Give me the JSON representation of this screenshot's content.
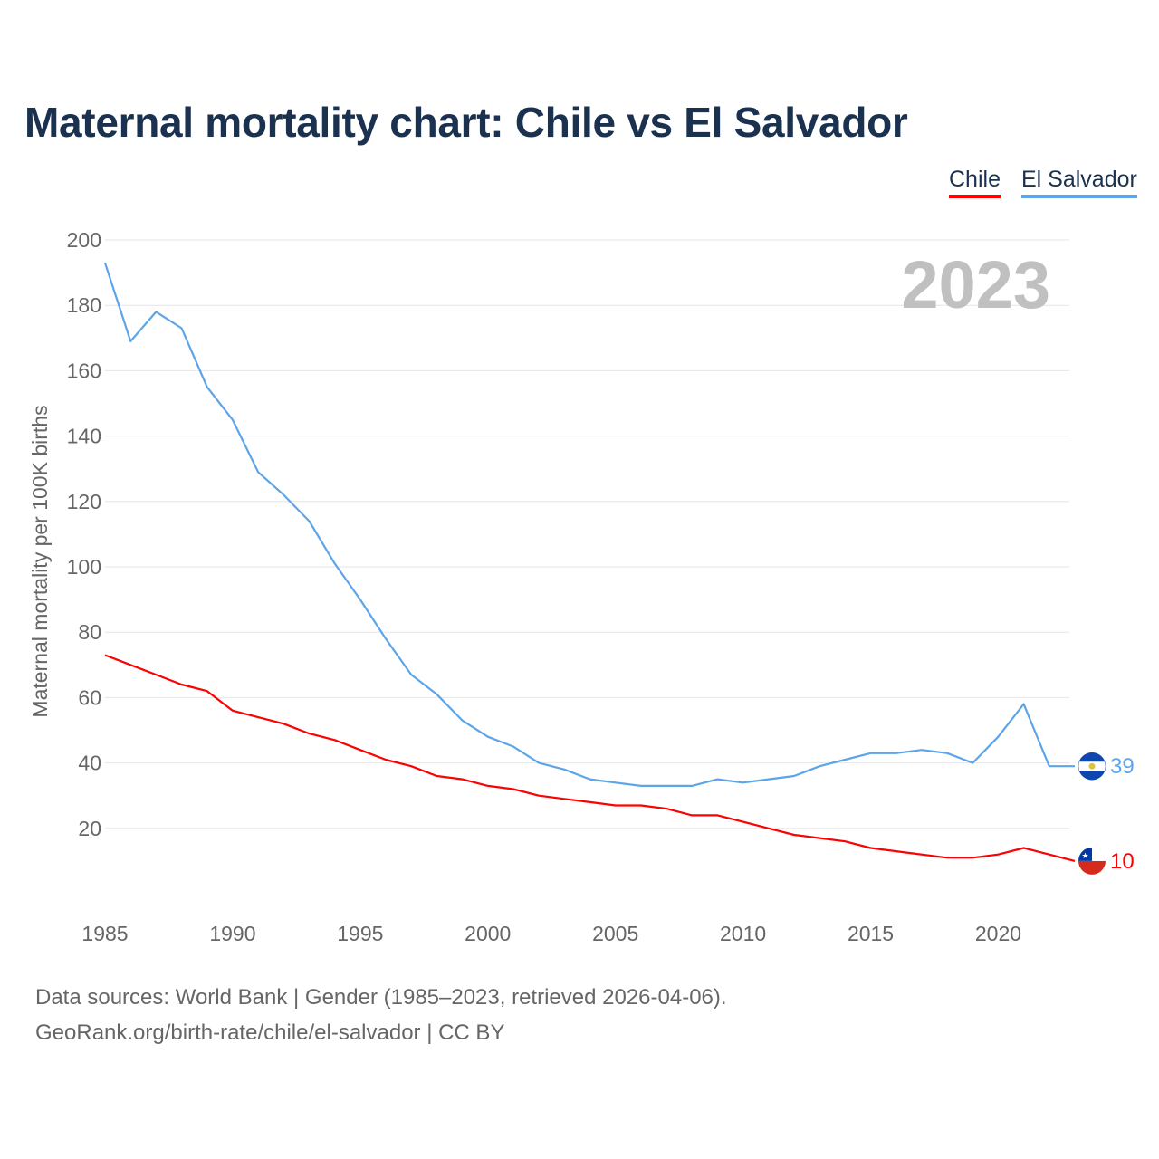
{
  "chart_data": {
    "type": "line",
    "title": "Maternal mortality chart: Chile vs El Salvador",
    "ylabel": "Maternal mortality per 100K births",
    "xlabel": "",
    "year_label": "2023",
    "xlim": [
      1985,
      2023
    ],
    "ylim": [
      0,
      200
    ],
    "x_ticks": [
      1985,
      1990,
      1995,
      2000,
      2005,
      2010,
      2015,
      2020
    ],
    "y_ticks": [
      20,
      40,
      60,
      80,
      100,
      120,
      140,
      160,
      180,
      200
    ],
    "grid": true,
    "legend_placement": "top-right",
    "x": [
      1985,
      1986,
      1987,
      1988,
      1989,
      1990,
      1991,
      1992,
      1993,
      1994,
      1995,
      1996,
      1997,
      1998,
      1999,
      2000,
      2001,
      2002,
      2003,
      2004,
      2005,
      2006,
      2007,
      2008,
      2009,
      2010,
      2011,
      2012,
      2013,
      2014,
      2015,
      2016,
      2017,
      2018,
      2019,
      2020,
      2021,
      2022,
      2023
    ],
    "series": [
      {
        "name": "Chile",
        "color": "#ff0000",
        "end_label": "10",
        "values": [
          73,
          70,
          67,
          64,
          62,
          56,
          54,
          52,
          49,
          47,
          44,
          41,
          39,
          36,
          35,
          33,
          32,
          30,
          29,
          28,
          27,
          27,
          26,
          24,
          24,
          22,
          20,
          18,
          17,
          16,
          14,
          13,
          12,
          11,
          11,
          12,
          14,
          12,
          10
        ]
      },
      {
        "name": "El Salvador",
        "color": "#5da5e8",
        "end_label": "39",
        "values": [
          193,
          169,
          178,
          173,
          155,
          145,
          129,
          122,
          114,
          101,
          90,
          78,
          67,
          61,
          53,
          48,
          45,
          40,
          38,
          35,
          34,
          33,
          33,
          33,
          35,
          34,
          35,
          36,
          39,
          41,
          43,
          43,
          44,
          43,
          40,
          48,
          58,
          39,
          39
        ]
      }
    ]
  },
  "footer": {
    "line1": "Data sources: World Bank | Gender (1985–2023, retrieved 2026-04-06).",
    "line2": "GeoRank.org/birth-rate/chile/el-salvador | CC BY"
  }
}
